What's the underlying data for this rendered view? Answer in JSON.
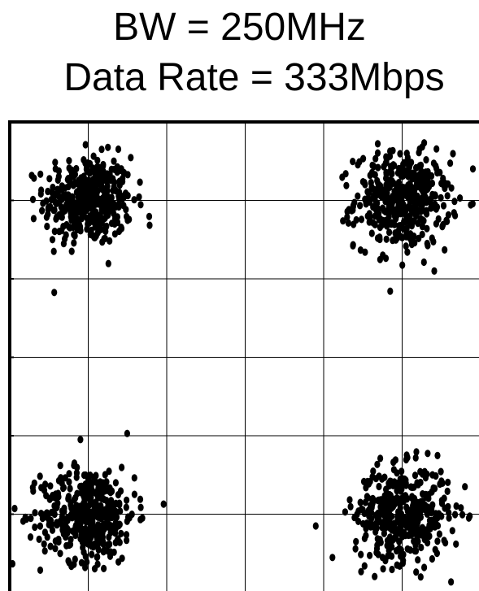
{
  "title_line_1": "BW = 250MHz",
  "title_line_2": "Data Rate = 333Mbps",
  "chart_data": {
    "type": "scatter",
    "title": "BW = 250MHz Data Rate = 333Mbps",
    "description_of_marks": "Constellation diagram: four dense clusters of received symbols",
    "grid": true,
    "colors": {
      "points": "#000000",
      "grid": "#000000",
      "background": "#ffffff"
    },
    "xlim": [
      0,
      6
    ],
    "ylim": [
      0,
      6
    ],
    "clusters": [
      {
        "center": [
          1,
          5
        ],
        "spread": 0.28,
        "count": 420
      },
      {
        "center": [
          5,
          5
        ],
        "spread": 0.3,
        "count": 430
      },
      {
        "center": [
          1,
          1
        ],
        "spread": 0.3,
        "count": 420
      },
      {
        "center": [
          5,
          1
        ],
        "spread": 0.3,
        "count": 420
      }
    ],
    "outliers": [
      [
        0.9,
        1.95
      ],
      [
        3.9,
        0.85
      ],
      [
        5.8,
        1.35
      ],
      [
        5.85,
        0.95
      ]
    ]
  }
}
